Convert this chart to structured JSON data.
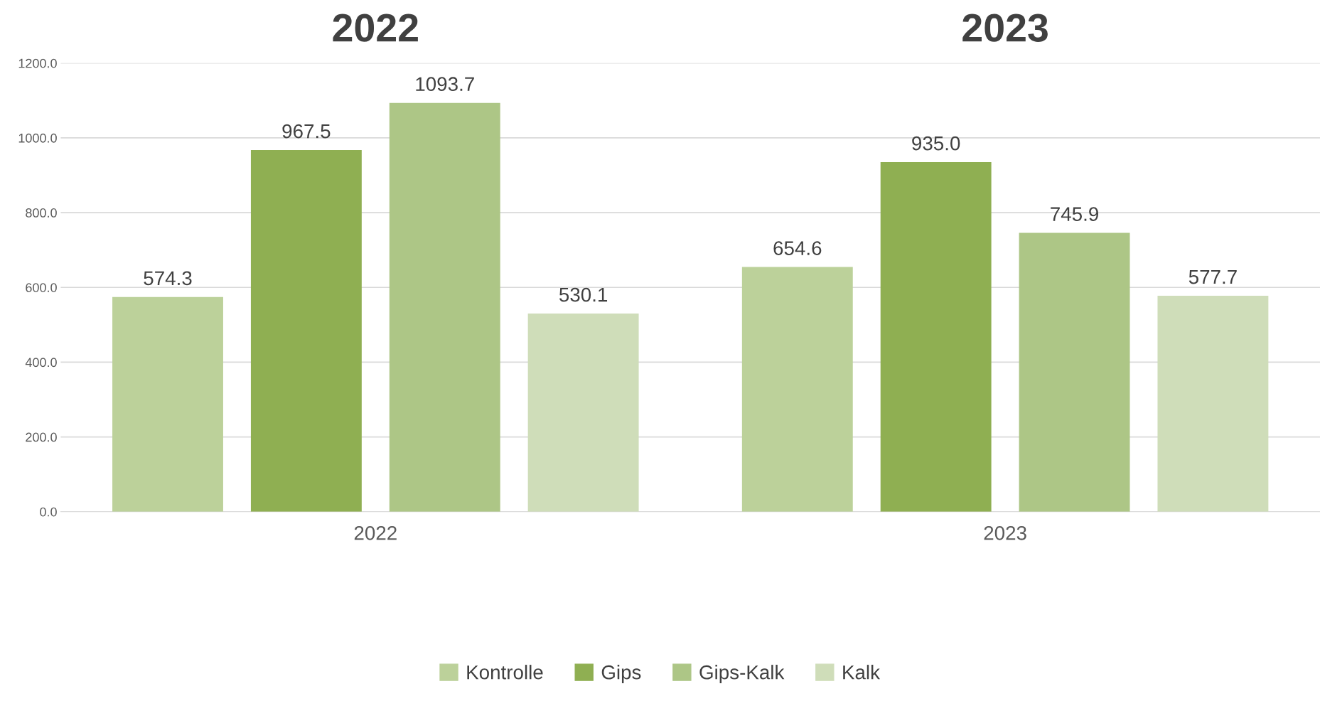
{
  "chart_data": {
    "type": "bar",
    "categories": [
      "2022",
      "2023"
    ],
    "series": [
      {
        "name": "Kontrolle",
        "color": "#bcd19a",
        "values": [
          574.3,
          654.6
        ],
        "value_labels": [
          "574.3",
          "654.6"
        ]
      },
      {
        "name": "Gips",
        "color": "#8faf52",
        "values": [
          967.5,
          935.0
        ],
        "value_labels": [
          "967.5",
          "935.0"
        ]
      },
      {
        "name": "Gips-Kalk",
        "color": "#adc686",
        "values": [
          1093.7,
          745.9
        ],
        "value_labels": [
          "1093.7",
          "745.9"
        ]
      },
      {
        "name": "Kalk",
        "color": "#cfddb9",
        "values": [
          530.1,
          577.7
        ],
        "value_labels": [
          "530.1",
          "577.7"
        ]
      }
    ],
    "annotations": [
      "2022",
      "2023"
    ],
    "ylim": [
      0,
      1200
    ],
    "yticks": [
      {
        "value": 0,
        "label": "0.0"
      },
      {
        "value": 200,
        "label": "200.0"
      },
      {
        "value": 400,
        "label": "400.0"
      },
      {
        "value": 600,
        "label": "600.0"
      },
      {
        "value": 800,
        "label": "800.0"
      },
      {
        "value": 1000,
        "label": "1000.0"
      },
      {
        "value": 1200,
        "label": "1200.0"
      }
    ],
    "grid": "y",
    "legend": "bottom"
  }
}
